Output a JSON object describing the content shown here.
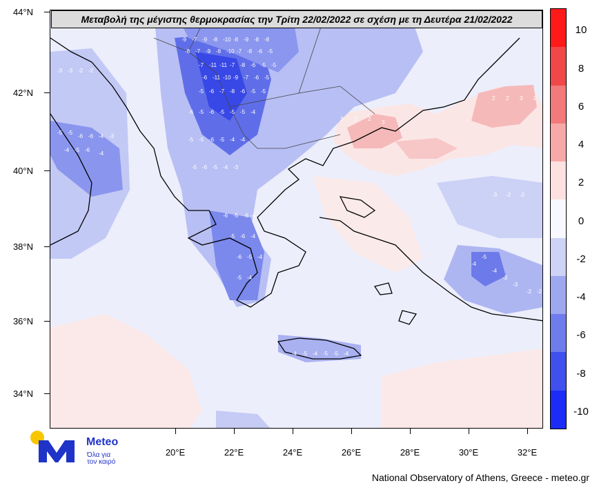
{
  "title": "Μεταβολή της μέγιστης θερμοκρασίας την Τρίτη 22/02/2022 σε σχέση με τη Δευτέρα 21/02/2022",
  "y_ticks": [
    "44°N",
    "42°N",
    "40°N",
    "38°N",
    "36°N",
    "34°N"
  ],
  "x_ticks": [
    "20°E",
    "22°E",
    "24°E",
    "26°E",
    "28°E",
    "30°E",
    "32°E"
  ],
  "legend": {
    "labels": [
      "10",
      "8",
      "6",
      "4",
      "2",
      "0",
      "-2",
      "-4",
      "-6",
      "-8",
      "-10"
    ],
    "colors": [
      "#ff1a1a",
      "#f04848",
      "#f27a7a",
      "#f7a9a9",
      "#fde0e0",
      "#f8f8ff",
      "#cdd2f6",
      "#9ea8f0",
      "#6f7cec",
      "#3f50ee",
      "#1a2cf5"
    ]
  },
  "logo": {
    "name": "Meteo",
    "tagline_1": "Όλα για",
    "tagline_2": "τον καιρό"
  },
  "footer": "National Observatory of Athens, Greece - meteo.gr",
  "map_labels": [
    {
      "t": "-9"
    },
    {
      "t": "-8"
    },
    {
      "t": "-7"
    },
    {
      "t": "-10"
    },
    {
      "t": "-11"
    },
    {
      "t": "-6"
    },
    {
      "t": "-5"
    },
    {
      "t": "-4"
    },
    {
      "t": "-3"
    },
    {
      "t": "-2"
    },
    {
      "t": "2"
    },
    {
      "t": "3"
    }
  ]
}
